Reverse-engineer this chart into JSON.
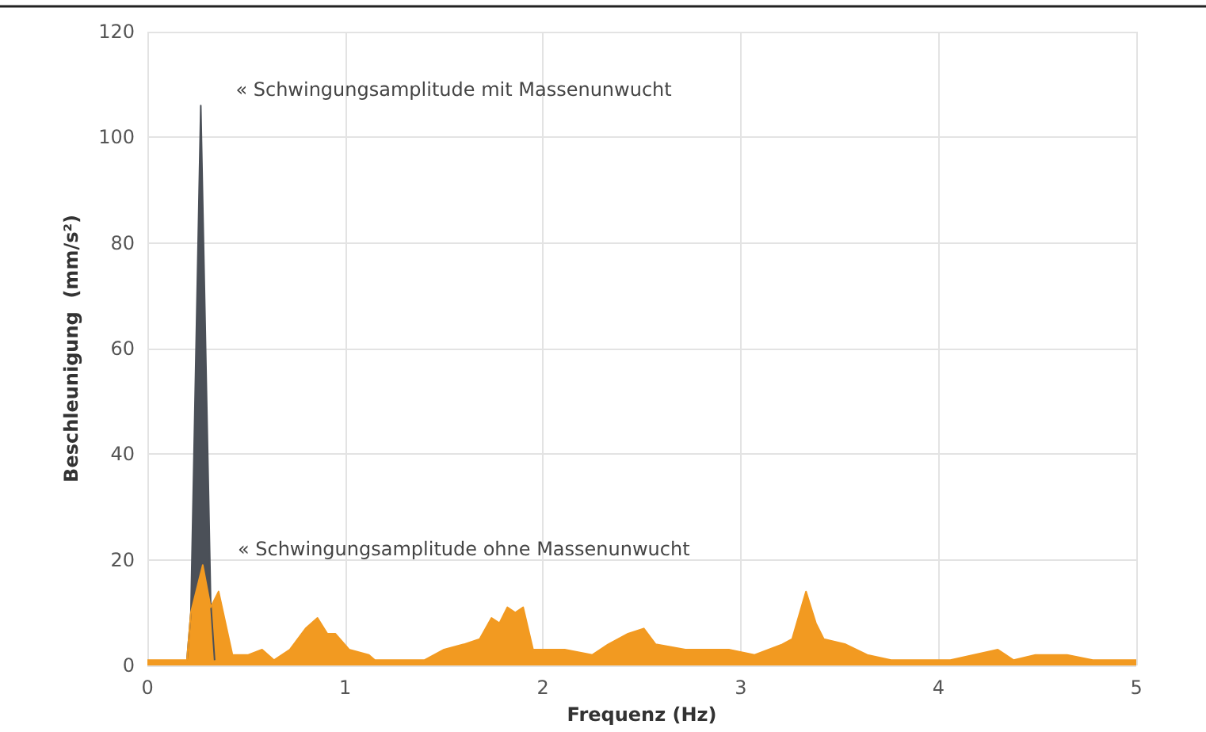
{
  "chart_data": {
    "type": "area",
    "xlabel": "Frequenz (Hz)",
    "ylabel": "Beschleunigung  (mm/s²)",
    "xlim": [
      0,
      5
    ],
    "xticks": [
      0,
      1,
      2,
      3,
      4,
      5
    ],
    "ylim": [
      0,
      120
    ],
    "yticks": [
      0,
      20,
      40,
      60,
      80,
      100,
      120
    ],
    "grid": true,
    "series": [
      {
        "color": "#4b5058",
        "x": [
          0.2,
          0.22,
          0.27,
          0.32,
          0.34
        ],
        "values": [
          1,
          10,
          106,
          12,
          1
        ]
      },
      {
        "color": "#f29a21",
        "x": [
          0,
          0.2,
          0.22,
          0.28,
          0.32,
          0.36,
          0.43,
          0.51,
          0.58,
          0.64,
          0.72,
          0.8,
          0.86,
          0.91,
          0.95,
          1.02,
          1.12,
          1.15,
          1.4,
          1.5,
          1.6,
          1.68,
          1.74,
          1.78,
          1.82,
          1.86,
          1.9,
          1.95,
          2.11,
          2.25,
          2.33,
          2.43,
          2.51,
          2.57,
          2.72,
          2.94,
          3.07,
          3.21,
          3.26,
          3.33,
          3.38,
          3.42,
          3.53,
          3.64,
          3.76,
          4.06,
          4.3,
          4.38,
          4.49,
          4.65,
          4.78,
          5
        ],
        "values": [
          1,
          1,
          10,
          19,
          11,
          14,
          2,
          2,
          3,
          1,
          3,
          7,
          9,
          6,
          6,
          3,
          2,
          1,
          1,
          3,
          4,
          5,
          9,
          8,
          11,
          10,
          11,
          3,
          3,
          2,
          4,
          6,
          7,
          4,
          3,
          3,
          2,
          4,
          5,
          14,
          8,
          5,
          4,
          2,
          1,
          1,
          3,
          1,
          2,
          2,
          1,
          1
        ]
      }
    ],
    "annotations": [
      {
        "text": "« Schwingungsamplitude mit Massenunwucht",
        "x": 0.27,
        "y": 106
      },
      {
        "text": "« Schwingungsamplitude ohne Massenunwucht",
        "x": 0.28,
        "y": 19
      }
    ]
  }
}
